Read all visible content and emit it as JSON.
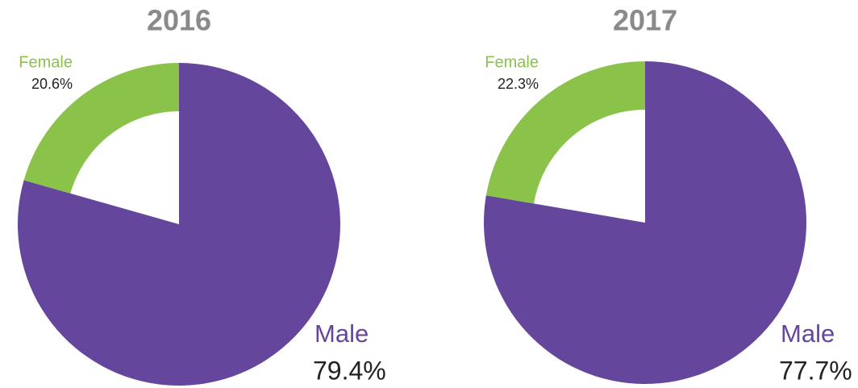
{
  "chart_data": [
    {
      "type": "pie",
      "title": "2016",
      "categories": [
        "Male",
        "Female"
      ],
      "values": [
        79.4,
        20.6
      ],
      "value_labels": [
        "79.4%",
        "20.6%"
      ],
      "colors": [
        "#64469c",
        "#8bc34a"
      ]
    },
    {
      "type": "pie",
      "title": "2017",
      "categories": [
        "Male",
        "Female"
      ],
      "values": [
        77.7,
        22.3
      ],
      "value_labels": [
        "77.7%",
        "22.3%"
      ],
      "colors": [
        "#64469c",
        "#8bc34a"
      ]
    }
  ]
}
